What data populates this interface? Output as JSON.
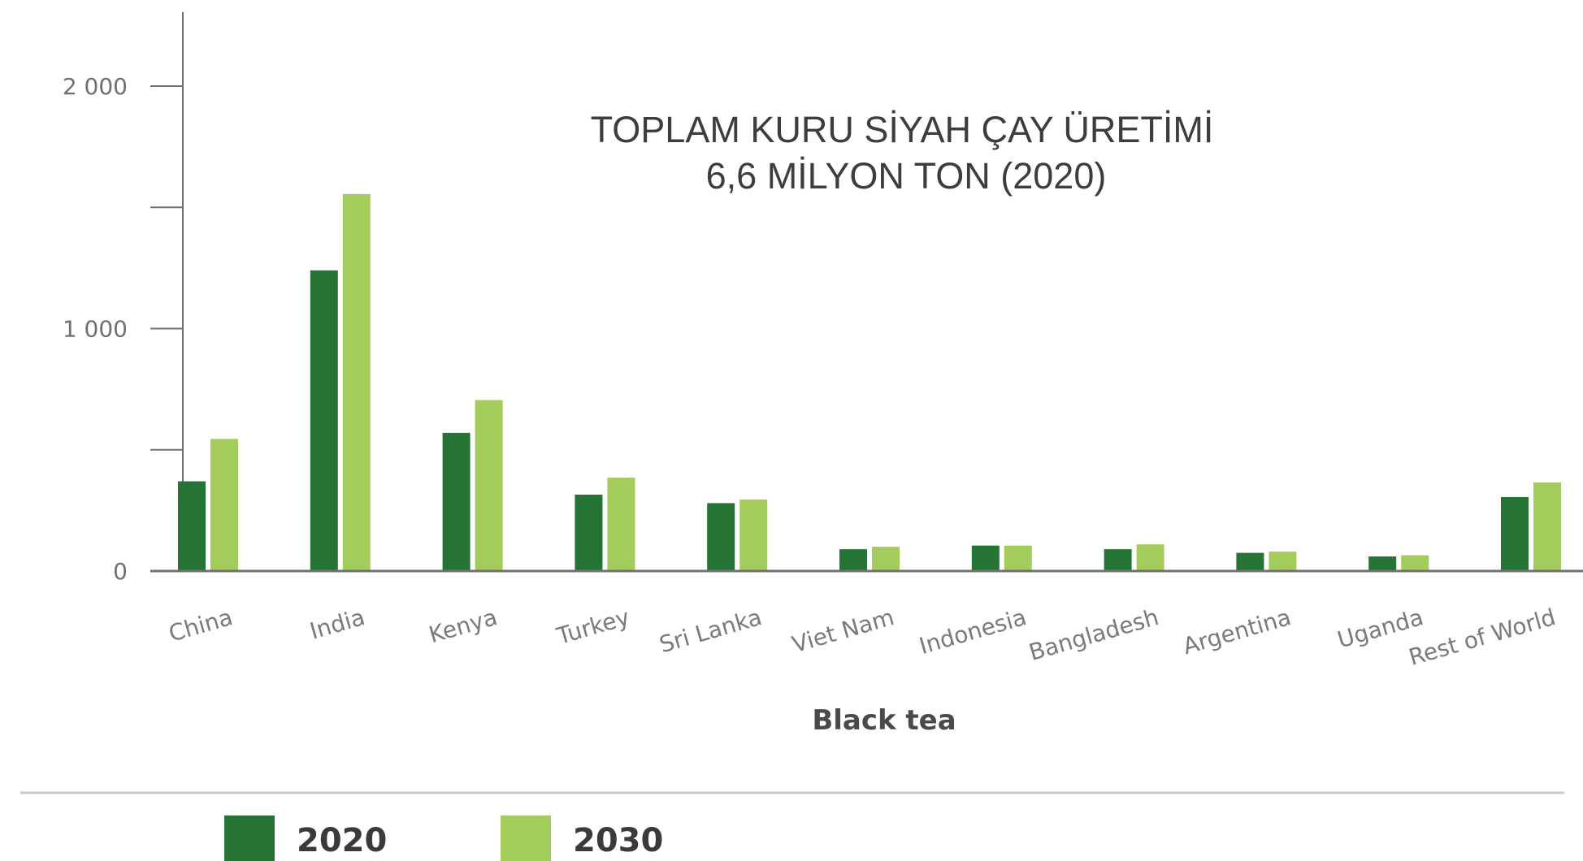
{
  "chart_data": {
    "type": "bar",
    "title": [
      "TOPLAM KURU SİYAH ÇAY ÜRETİMİ",
      "6,6 MİLYON TON (2020)"
    ],
    "xlabel": "Black tea",
    "ylabel": "",
    "ylim": [
      0,
      2300
    ],
    "yticks": [
      0,
      500,
      1000,
      1500,
      2000
    ],
    "ytick_labels": [
      "0",
      "",
      "1 000",
      "",
      "2 000"
    ],
    "grid": false,
    "legend_position": "bottom-left",
    "categories": [
      "China",
      "India",
      "Kenya",
      "Turkey",
      "Sri Lanka",
      "Viet Nam",
      "Indonesia",
      "Bangladesh",
      "Argentina",
      "Uganda",
      "Rest of World"
    ],
    "series": [
      {
        "name": "2020",
        "color": "#267336",
        "values": [
          370,
          1240,
          570,
          315,
          280,
          90,
          105,
          90,
          75,
          60,
          305
        ]
      },
      {
        "name": "2030",
        "color": "#a3cc5b",
        "values": [
          545,
          1555,
          705,
          385,
          295,
          100,
          105,
          110,
          80,
          65,
          365
        ]
      }
    ],
    "colors": {
      "axis": "#707070",
      "divider": "#c9c9c9",
      "background": "#ffffff"
    }
  }
}
